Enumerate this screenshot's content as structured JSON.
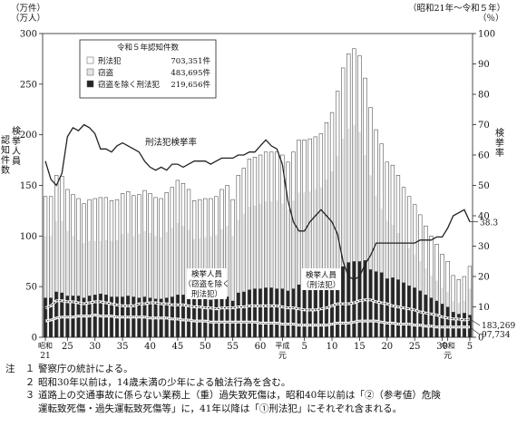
{
  "chart_data": {
    "type": "bar",
    "period_label": "（昭和21年～令和５年）",
    "left_axis": {
      "unit_label": [
        "（万件）",
        "（万人）"
      ],
      "title": "認知件数",
      "title_2": "検挙人員",
      "ylim": [
        0,
        300
      ],
      "ticks": [
        "0",
        "50",
        "100",
        "150",
        "200",
        "250",
        "300"
      ]
    },
    "right_axis": {
      "unit_label": "（％）",
      "title": "検挙率",
      "ylim": [
        0,
        100
      ],
      "ticks": [
        "0",
        "10",
        "20",
        "30",
        "40",
        "50",
        "60",
        "70",
        "80",
        "90",
        "100"
      ]
    },
    "x_axis": {
      "tick_labels": [
        {
          "label": "昭和",
          "sub": "21",
          "year": 1946
        },
        {
          "label": "25",
          "year": 1950
        },
        {
          "label": "30",
          "year": 1955
        },
        {
          "label": "35",
          "year": 1960
        },
        {
          "label": "40",
          "year": 1965
        },
        {
          "label": "45",
          "year": 1970
        },
        {
          "label": "50",
          "year": 1975
        },
        {
          "label": "55",
          "year": 1980
        },
        {
          "label": "60",
          "year": 1985
        },
        {
          "label": "平成",
          "sub": "元",
          "year": 1989
        },
        {
          "label": "5",
          "year": 1993
        },
        {
          "label": "10",
          "year": 1998
        },
        {
          "label": "15",
          "year": 2003
        },
        {
          "label": "20",
          "year": 2008
        },
        {
          "label": "25",
          "year": 2013
        },
        {
          "label": "30",
          "year": 2018
        },
        {
          "label": "令和",
          "sub": "元",
          "year": 2019
        },
        {
          "label": "5",
          "year": 2023
        }
      ]
    },
    "legend": {
      "title": "令和５年認知件数",
      "items": [
        {
          "name": "刑法犯",
          "value": "703,351件",
          "style": "white"
        },
        {
          "name": "窃盗",
          "value": "483,695件",
          "style": "light-gray"
        },
        {
          "name": "窃盗を除く刑法犯",
          "value": "219,656件",
          "style": "dark"
        }
      ]
    },
    "annotations": {
      "rate_label": "刑法犯検挙率",
      "arrested_nontheft": "検挙人員（窃盗を除く刑法犯）",
      "arrested_all": "検挙人員（刑法犯）",
      "end_total": "183,269",
      "end_arrested": "97,734",
      "end_rate": "38.3"
    },
    "series_meta": [
      {
        "name": "刑法犯",
        "unit": "万件"
      },
      {
        "name": "窃盗",
        "unit": "万件"
      },
      {
        "name": "窃盗を除く刑法犯",
        "unit": "万件"
      },
      {
        "name": "検挙人員（刑法犯）",
        "unit": "万人"
      },
      {
        "name": "検挙人員（窃盗を除く刑法犯）",
        "unit": "万人"
      },
      {
        "name": "刑法犯検挙率",
        "unit": "％"
      }
    ],
    "years": [
      1946,
      1947,
      1948,
      1949,
      1950,
      1951,
      1952,
      1953,
      1954,
      1955,
      1956,
      1957,
      1958,
      1959,
      1960,
      1961,
      1962,
      1963,
      1964,
      1965,
      1966,
      1967,
      1968,
      1969,
      1970,
      1971,
      1972,
      1973,
      1974,
      1975,
      1976,
      1977,
      1978,
      1979,
      1980,
      1981,
      1982,
      1983,
      1984,
      1985,
      1986,
      1987,
      1988,
      1989,
      1990,
      1991,
      1992,
      1993,
      1994,
      1995,
      1996,
      1997,
      1998,
      1999,
      2000,
      2001,
      2002,
      2003,
      2004,
      2005,
      2006,
      2007,
      2008,
      2009,
      2010,
      2011,
      2012,
      2013,
      2014,
      2015,
      2016,
      2017,
      2018,
      2019,
      2020,
      2021,
      2022,
      2023
    ],
    "total": [
      139,
      139,
      160,
      159,
      146,
      141,
      137,
      132,
      136,
      137,
      138,
      138,
      135,
      136,
      142,
      144,
      140,
      141,
      145,
      142,
      138,
      137,
      143,
      148,
      155,
      152,
      146,
      135,
      136,
      137,
      137,
      139,
      146,
      150,
      136,
      160,
      167,
      176,
      178,
      180,
      183,
      183,
      183,
      180,
      173,
      183,
      195,
      195,
      196,
      198,
      201,
      212,
      222,
      243,
      266,
      280,
      285,
      278,
      256,
      227,
      205,
      191,
      173,
      170,
      160,
      148,
      139,
      131,
      121,
      110,
      100,
      92,
      82,
      75,
      61,
      57,
      60,
      70
    ],
    "theft": [
      100,
      100,
      115,
      115,
      105,
      100,
      96,
      93,
      95,
      95,
      95,
      96,
      95,
      96,
      102,
      103,
      100,
      102,
      105,
      103,
      100,
      99,
      104,
      108,
      113,
      110,
      106,
      97,
      98,
      99,
      100,
      101,
      107,
      110,
      100,
      116,
      122,
      129,
      130,
      132,
      134,
      134,
      135,
      132,
      127,
      135,
      143,
      143,
      144,
      146,
      148,
      156,
      164,
      179,
      196,
      206,
      210,
      203,
      180,
      160,
      140,
      127,
      115,
      111,
      103,
      94,
      88,
      82,
      75,
      68,
      61,
      56,
      49,
      45,
      36,
      34,
      36,
      48
    ],
    "nontheft": [
      39,
      39,
      45,
      44,
      41,
      41,
      41,
      39,
      41,
      42,
      43,
      42,
      40,
      40,
      40,
      41,
      40,
      39,
      40,
      39,
      38,
      38,
      39,
      40,
      42,
      42,
      40,
      38,
      38,
      38,
      37,
      38,
      39,
      40,
      36,
      44,
      45,
      47,
      48,
      48,
      49,
      49,
      48,
      48,
      46,
      48,
      52,
      52,
      52,
      52,
      53,
      56,
      58,
      64,
      70,
      74,
      75,
      75,
      76,
      67,
      65,
      64,
      58,
      59,
      57,
      54,
      51,
      49,
      46,
      42,
      39,
      36,
      33,
      30,
      25,
      23,
      24,
      22
    ],
    "arrested_all": [
      29,
      31,
      36,
      36,
      35,
      35,
      34,
      33,
      34,
      35,
      35,
      34,
      33,
      32,
      31,
      31,
      31,
      33,
      33,
      34,
      34,
      33,
      33,
      32,
      32,
      32,
      31,
      30,
      30,
      29,
      29,
      28,
      29,
      29,
      29,
      30,
      30,
      31,
      31,
      31,
      31,
      31,
      31,
      30,
      29,
      29,
      28,
      27,
      27,
      27,
      28,
      29,
      31,
      33,
      33,
      33,
      34,
      36,
      37,
      37,
      35,
      34,
      33,
      31,
      30,
      29,
      28,
      27,
      25,
      24,
      23,
      22,
      20,
      19,
      18,
      18,
      17,
      18
    ],
    "arrested_nontheft": [
      16,
      17,
      19,
      20,
      20,
      20,
      21,
      21,
      21,
      22,
      21,
      21,
      21,
      20,
      20,
      20,
      20,
      20,
      20,
      19,
      19,
      19,
      19,
      18,
      18,
      17,
      17,
      16,
      16,
      16,
      15,
      15,
      15,
      15,
      15,
      15,
      15,
      15,
      15,
      14,
      14,
      14,
      14,
      13,
      13,
      13,
      12,
      12,
      12,
      12,
      12,
      12,
      13,
      14,
      14,
      14,
      15,
      16,
      16,
      16,
      16,
      15,
      14,
      14,
      13,
      13,
      13,
      12,
      12,
      11,
      11,
      10,
      10,
      10,
      10,
      10,
      10,
      10
    ],
    "rate": [
      58,
      52,
      50,
      54,
      66,
      69,
      68,
      70,
      69,
      67,
      62,
      62,
      61,
      63,
      64,
      63,
      62,
      61,
      58,
      56,
      55,
      56,
      55,
      57,
      57,
      56,
      57,
      58,
      58,
      58,
      57,
      58,
      59,
      59,
      59,
      60,
      60,
      61,
      61,
      63,
      65,
      63,
      62,
      57,
      45,
      38,
      35,
      35,
      38,
      40,
      42,
      40,
      38,
      34,
      25,
      20,
      19,
      20,
      24,
      27,
      31,
      31,
      31,
      31,
      31,
      31,
      31,
      31,
      32,
      32,
      32,
      33,
      33,
      36,
      40,
      41,
      42,
      38
    ]
  },
  "notes": {
    "label": "注",
    "items": [
      {
        "num": "１",
        "text": "警察庁の統計による。"
      },
      {
        "num": "２",
        "text": "昭和30年以前は，14歳未満の少年による触法行為を含む。"
      },
      {
        "num": "３",
        "text": "道路上の交通事故に係らない業務上（重）過失致死傷は，昭和40年以前は「②（参考値）危険"
      },
      {
        "num": "",
        "text": "運転致死傷・過失運転致死傷等」に，41年以降は「①刑法犯」にそれぞれ含まれる。"
      }
    ]
  }
}
